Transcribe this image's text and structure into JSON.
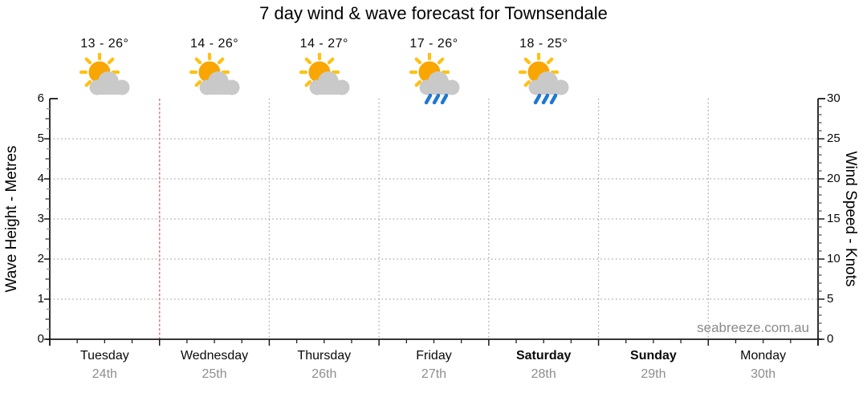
{
  "title": "7 day wind & wave forecast for Townsendale",
  "watermark": "seabreeze.com.au",
  "chart_data": {
    "type": "table",
    "title": "7 day wind & wave forecast for Townsendale",
    "subtitle": "",
    "left_axis": {
      "label": "Wave Height - Metres",
      "min": 0,
      "max": 6,
      "major_step": 1,
      "minor_step": 0.25,
      "tick_labels": [
        "0",
        "1",
        "2",
        "3",
        "4",
        "5",
        "6"
      ]
    },
    "right_axis": {
      "label": "Wind Speed - Knots",
      "min": 0,
      "max": 30,
      "major_step": 5,
      "minor_step": 1,
      "tick_labels": [
        "0",
        "5",
        "10",
        "15",
        "20",
        "25",
        "30"
      ]
    },
    "x_axis": {
      "days": 7,
      "minor_divisions_per_day": 4,
      "gridlines_at_day_boundaries": true
    },
    "days": [
      {
        "name": "Tuesday",
        "date": "24th",
        "bold": false,
        "temp": "13 - 26°",
        "icon": "sun-cloud"
      },
      {
        "name": "Wednesday",
        "date": "25th",
        "bold": false,
        "temp": "14 - 26°",
        "icon": "sun-cloud"
      },
      {
        "name": "Thursday",
        "date": "26th",
        "bold": false,
        "temp": "14 - 27°",
        "icon": "sun-cloud"
      },
      {
        "name": "Friday",
        "date": "27th",
        "bold": false,
        "temp": "17 - 26°",
        "icon": "sun-cloud-rain"
      },
      {
        "name": "Saturday",
        "date": "28th",
        "bold": true,
        "temp": "18 - 25°",
        "icon": "sun-cloud-rain"
      },
      {
        "name": "Sunday",
        "date": "29th",
        "bold": true,
        "temp": null,
        "icon": null
      },
      {
        "name": "Monday",
        "date": "30th",
        "bold": false,
        "temp": null,
        "icon": null
      }
    ],
    "series": [],
    "now_marker": {
      "position": "end of Tuesday (1st day boundary)",
      "style": "dotted vertical line",
      "color": "#e08080"
    },
    "grid": {
      "horizontal_dotted_at": [
        1,
        2,
        3,
        4,
        5
      ],
      "vertical_dotted_at_boundaries": [
        2,
        3,
        4,
        5,
        6
      ],
      "color": "#a6a6a6"
    },
    "legend": "none"
  },
  "colors": {
    "sun_body": "#F9A602",
    "sun_rays": "#FFC113",
    "cloud": "#C9C9C9",
    "rain": "#1E78D2",
    "grid": "#a6a6a6",
    "now_line": "#e08080",
    "axis": "#1a1a1a",
    "date_text": "#8e8e8e",
    "watermark_text": "#8a8a8a"
  }
}
